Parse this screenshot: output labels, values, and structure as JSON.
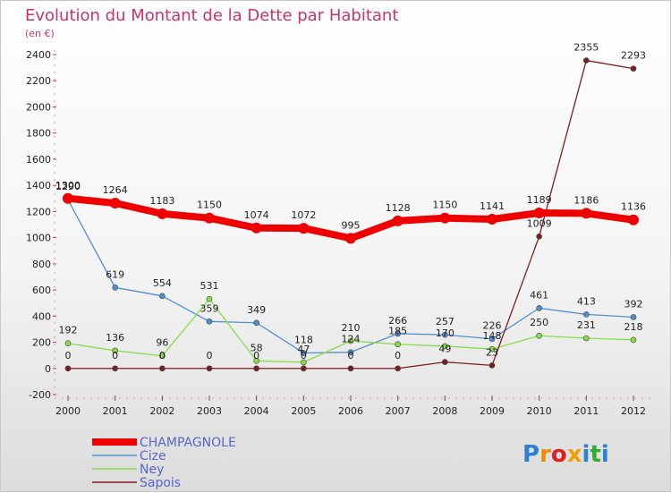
{
  "chart_data": {
    "type": "line",
    "title": "Evolution du Montant de la Dette par Habitant",
    "unit_label": "(en €)",
    "x": [
      "2000",
      "2001",
      "2002",
      "2003",
      "2004",
      "2005",
      "2006",
      "2007",
      "2008",
      "2009",
      "2010",
      "2011",
      "2012"
    ],
    "ylim": [
      -200,
      2400
    ],
    "yticks": [
      -200,
      0,
      200,
      400,
      600,
      800,
      1000,
      1200,
      1400,
      1600,
      1800,
      2000,
      2200,
      2400
    ],
    "grid": false,
    "legend_position": "bottom-left",
    "series": [
      {
        "name": "CHAMPAGNOLE",
        "color": "#ee0000",
        "width": 8,
        "marker": 6,
        "values": [
          1300,
          1264,
          1183,
          1150,
          1074,
          1072,
          995,
          1128,
          1150,
          1141,
          1189,
          1186,
          1136
        ]
      },
      {
        "name": "Cize",
        "color": "#4f8fd0",
        "width": 1.3,
        "marker": 3,
        "values": [
          1290,
          619,
          554,
          359,
          349,
          118,
          124,
          266,
          257,
          226,
          461,
          413,
          392
        ]
      },
      {
        "name": "Ney",
        "color": "#88dd44",
        "width": 1.3,
        "marker": 3,
        "values": [
          192,
          136,
          96,
          531,
          58,
          47,
          210,
          185,
          170,
          148,
          250,
          231,
          218
        ]
      },
      {
        "name": "Sapois",
        "color": "#7a1f1f",
        "width": 1.3,
        "marker": 3,
        "values": [
          0,
          0,
          0,
          0,
          0,
          0,
          0,
          0,
          49,
          23,
          1009,
          2355,
          2293
        ]
      }
    ]
  },
  "logo": {
    "text": "Proxiti",
    "colors": [
      "#2d7fd0",
      "#f08a00",
      "#e02020",
      "#f0a000",
      "#2d7fd0",
      "#33aa33",
      "#2d7fd0"
    ]
  }
}
